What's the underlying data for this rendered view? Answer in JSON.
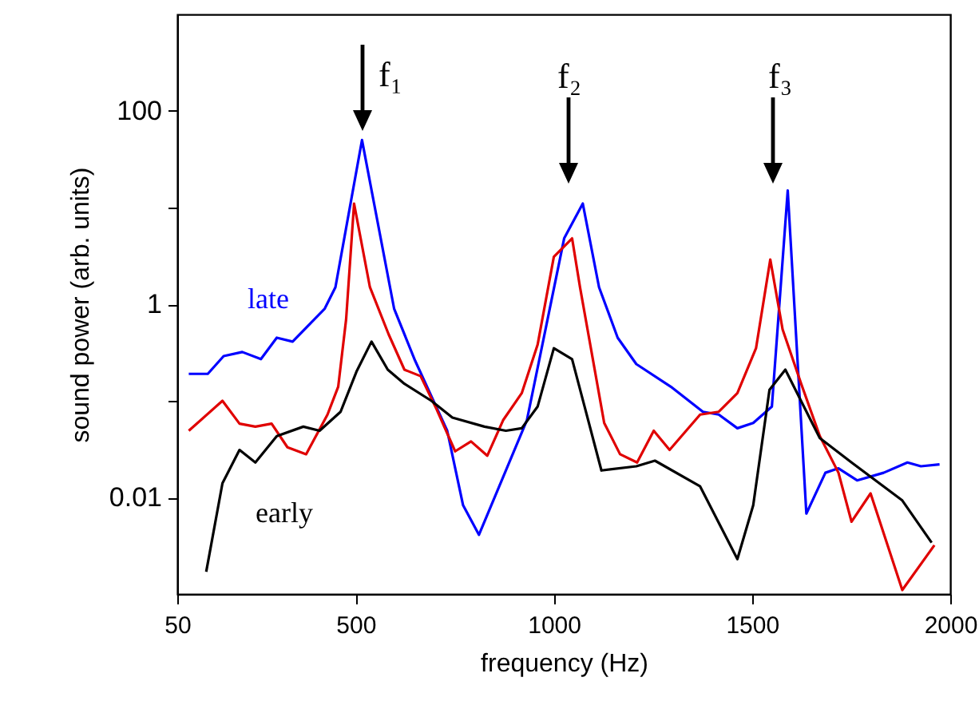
{
  "chart_data": {
    "type": "line",
    "xlabel": "frequency (Hz)",
    "ylabel": "sound power (arb. units)",
    "log": "y",
    "xlim": [
      50,
      2000
    ],
    "xticks": [
      50,
      500,
      1000,
      1500,
      2000
    ],
    "ylim": [
      0.001,
      1000
    ],
    "yticks": [
      0.01,
      {
        "value": 0.1,
        "label": null
      },
      1,
      {
        "value": 10,
        "label": null
      },
      100
    ],
    "marker": "none",
    "line_style": "solid",
    "annotations": [
      "f₁",
      "f₂",
      "f₃"
    ],
    "series": [
      {
        "name": "late",
        "color": "#0000ff",
        "x": [
          79,
          127,
          167,
          214,
          261,
          301,
          341,
          422,
          449,
          516,
          597,
          650,
          731,
          771,
          811,
          932,
          1026,
          1073,
          1114,
          1161,
          1208,
          1295,
          1376,
          1416,
          1463,
          1503,
          1550,
          1590,
          1637,
          1685,
          1718,
          1765,
          1832,
          1892,
          1926,
          1973
        ],
        "values": [
          0.19,
          0.19,
          0.29,
          0.32,
          0.27,
          0.45,
          0.41,
          0.9,
          1.5,
          50,
          0.9,
          0.26,
          0.049,
          0.0083,
          0.0041,
          0.063,
          4.8,
          11,
          1.5,
          0.45,
          0.24,
          0.14,
          0.077,
          0.072,
          0.052,
          0.059,
          0.087,
          15,
          0.0068,
          0.018,
          0.02,
          0.015,
          0.018,
          0.023,
          0.021,
          0.022
        ]
      },
      {
        "color": "#e00000",
        "x": [
          79,
          164,
          207,
          247,
          288,
          328,
          375,
          429,
          456,
          476,
          496,
          536,
          583,
          623,
          664,
          704,
          751,
          791,
          832,
          872,
          919,
          959,
          1000,
          1046,
          1066,
          1127,
          1167,
          1210,
          1252,
          1292,
          1369,
          1416,
          1463,
          1510,
          1546,
          1577,
          1624,
          1671,
          1718,
          1751,
          1799,
          1879,
          1960
        ],
        "values": [
          0.049,
          0.1,
          0.058,
          0.054,
          0.058,
          0.033,
          0.028,
          0.072,
          0.14,
          0.7,
          11,
          1.5,
          0.49,
          0.21,
          0.18,
          0.082,
          0.03,
          0.038,
          0.027,
          0.063,
          0.12,
          0.38,
          3.1,
          4.8,
          1.5,
          0.059,
          0.028,
          0.023,
          0.049,
          0.031,
          0.072,
          0.077,
          0.12,
          0.35,
          2.9,
          0.55,
          0.15,
          0.043,
          0.018,
          0.0056,
          0.011,
          0.0011,
          0.0032
        ]
      },
      {
        "name": "early",
        "color": "#000000",
        "x": [
          123,
          164,
          207,
          247,
          301,
          368,
          409,
          462,
          502,
          540,
          581,
          623,
          691,
          744,
          825,
          879,
          919,
          959,
          1000,
          1046,
          1120,
          1208,
          1255,
          1369,
          1463,
          1503,
          1544,
          1584,
          1671,
          1751,
          1879,
          1953
        ],
        "values": [
          0.0017,
          0.014,
          0.031,
          0.023,
          0.043,
          0.054,
          0.049,
          0.077,
          0.2,
          0.41,
          0.21,
          0.15,
          0.1,
          0.067,
          0.054,
          0.049,
          0.052,
          0.087,
          0.35,
          0.27,
          0.019,
          0.021,
          0.024,
          0.013,
          0.0023,
          0.0083,
          0.13,
          0.21,
          0.041,
          0.023,
          0.0093,
          0.0034
        ]
      }
    ]
  }
}
